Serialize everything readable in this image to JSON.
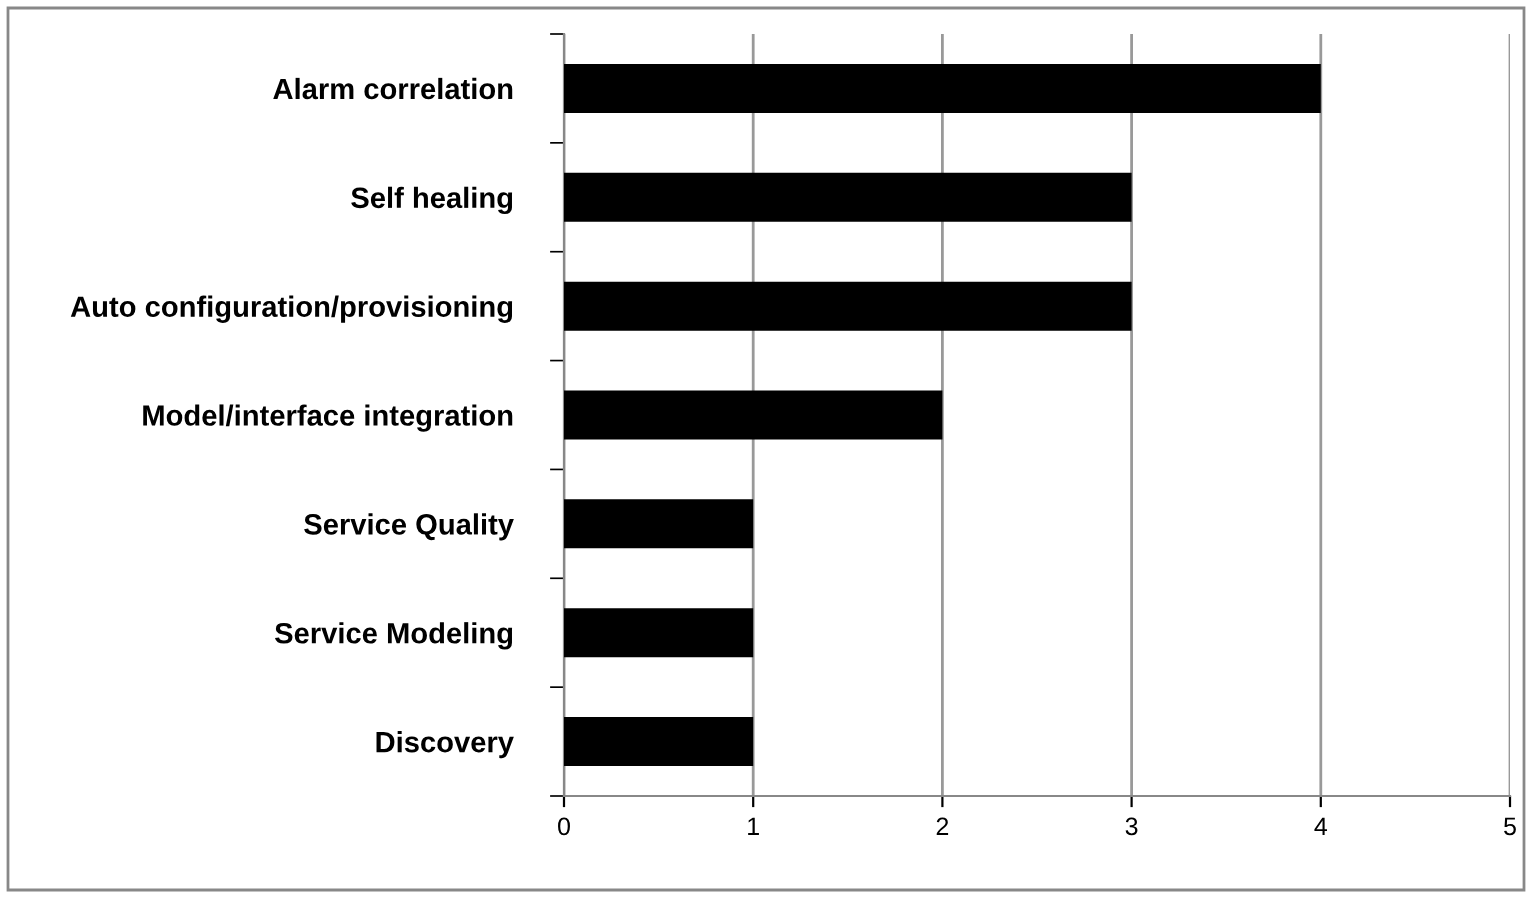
{
  "chart_data": {
    "type": "bar",
    "orientation": "horizontal",
    "categories": [
      "Alarm correlation",
      "Self healing",
      "Auto configuration/provisioning",
      "Model/interface integration",
      "Service Quality",
      "Service Modeling",
      "Discovery"
    ],
    "values": [
      4,
      3,
      3,
      2,
      1,
      1,
      1
    ],
    "color": "#000000",
    "xlim": [
      0,
      5
    ],
    "xticks": [
      0,
      1,
      2,
      3,
      4,
      5
    ],
    "grid": "x"
  }
}
